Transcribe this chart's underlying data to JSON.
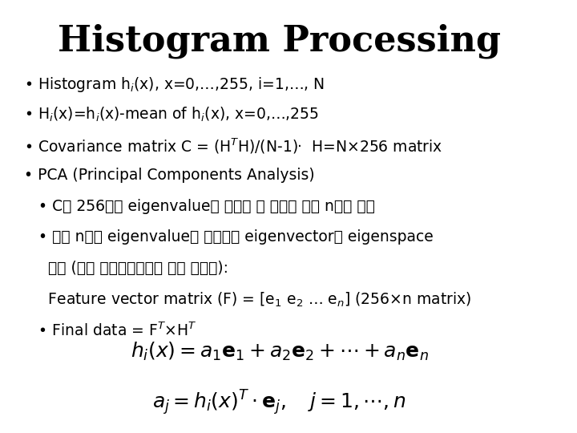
{
  "title": "Histogram Processing",
  "background_color": "#ffffff",
  "text_color": "#000000",
  "title_fontsize": 32,
  "body_fontsize": 13.5,
  "bullet_lines": [
    "• Histogram h$_i$(x), x=0,…,255, i=1,…, N",
    "• H$_i$(x)=h$_i$(x)-mean of h$_i$(x), x=0,…,255",
    "• Covariance matrix C = (H$^T$H)/(N-1)·  H=N×256 matrix",
    "• PCA (Principal Components Analysis)"
  ],
  "sub_bullet_lines": [
    "   • C의 256개의 eigenvalue를 구하고 이 가운데 상위 n개를 선정",
    "   • 상위 n개의 eigenvalue에 대응되는 eigenvector로 eigenspace",
    "     구축 (모든 아이겐벡터들은 서로 직교함):",
    "     Feature vector matrix (F) = [e$_1$ e$_2$ … e$_n$] (256×n matrix)",
    "   • Final data = F$^T$×H$^T$"
  ],
  "formula1": "$h_i(x) = a_1\\mathbf{e}_1 + a_2\\mathbf{e}_2 + \\cdots + a_n\\mathbf{e}_n$",
  "formula2": "$a_j = h_i(x)^T \\cdot \\mathbf{e}_j, \\quad j = 1, \\cdots ,n$"
}
